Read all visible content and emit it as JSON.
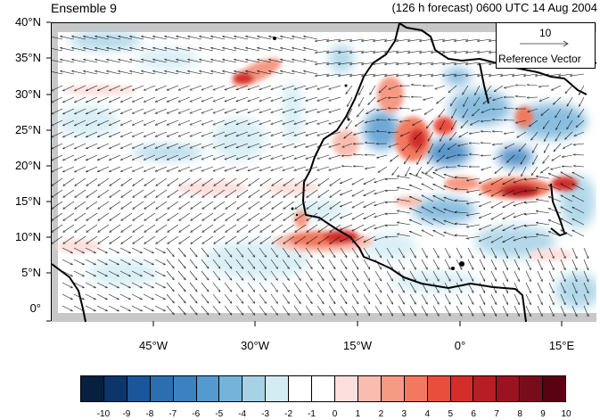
{
  "title_left": "Ensemble 9",
  "title_right": "(126 h forecast) 0600 UTC 14 Aug 2004",
  "lat_labels": [
    "40°N",
    "35°N",
    "30°N",
    "25°N",
    "20°N",
    "15°N",
    "10°N",
    "5°N",
    "0°"
  ],
  "lon_labels": [
    "45°W",
    "30°W",
    "15°W",
    "0°",
    "15°E"
  ],
  "reference_vector": {
    "magnitude": "10",
    "label": "Reference Vector"
  },
  "colorbar": {
    "labels": [
      "-10",
      "-9",
      "-8",
      "-7",
      "-6",
      "-5",
      "-4",
      "-3",
      "-2",
      "-1",
      "0",
      "1",
      "2",
      "3",
      "4",
      "5",
      "6",
      "7",
      "8",
      "9",
      "10"
    ],
    "colors": [
      "#08203f",
      "#0b356b",
      "#1a5699",
      "#2b6fb0",
      "#3a82c1",
      "#5499cf",
      "#76b3da",
      "#a5d2e6",
      "#d3ecf4",
      "#ffffff",
      "#ffffff",
      "#fde0dd",
      "#f9bdb0",
      "#f69a84",
      "#f2795f",
      "#e94e3c",
      "#d42e2a",
      "#b81d23",
      "#991420",
      "#780c1a",
      "#5a0212"
    ]
  },
  "colors": {
    "land_gray": "#c8c8c8",
    "coast": "#000000",
    "arrow": "#1a1a1a"
  }
}
